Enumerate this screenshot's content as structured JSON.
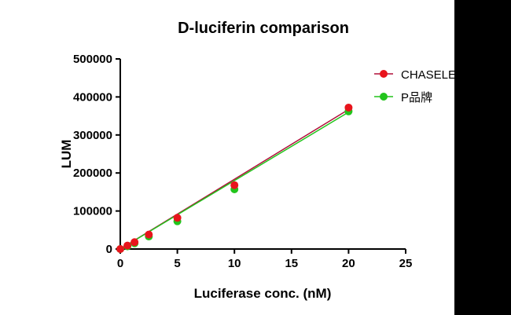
{
  "chart_data": {
    "type": "scatter",
    "title": "D-luciferin comparison",
    "xlabel": "Luciferase conc. (nM)",
    "ylabel": "LUM",
    "xlim": [
      0,
      25
    ],
    "ylim": [
      0,
      500000
    ],
    "x_ticks": [
      "0",
      "5",
      "10",
      "15",
      "20",
      "25"
    ],
    "y_ticks": [
      "0",
      "100000",
      "200000",
      "300000",
      "400000",
      "500000"
    ],
    "grid": false,
    "legend_position": "right",
    "series": [
      {
        "name": "CHASELEI",
        "color": "#e8141c",
        "line_color": "#b0103a",
        "points": [
          {
            "x": 0,
            "y": 0
          },
          {
            "x": 0.625,
            "y": 9000
          },
          {
            "x": 1.25,
            "y": 18000
          },
          {
            "x": 2.5,
            "y": 38000
          },
          {
            "x": 5,
            "y": 82000
          },
          {
            "x": 10,
            "y": 168000
          },
          {
            "x": 20,
            "y": 372000
          }
        ],
        "fit": {
          "x": [
            0,
            20
          ],
          "y": [
            0,
            367000
          ]
        }
      },
      {
        "name": "P品牌",
        "color": "#22c41c",
        "line_color": "#22c41c",
        "points": [
          {
            "x": 0,
            "y": 0
          },
          {
            "x": 0.625,
            "y": 7000
          },
          {
            "x": 1.25,
            "y": 15000
          },
          {
            "x": 2.5,
            "y": 33000
          },
          {
            "x": 5,
            "y": 73000
          },
          {
            "x": 10,
            "y": 157000
          },
          {
            "x": 20,
            "y": 362000
          }
        ],
        "fit": {
          "x": [
            0,
            20
          ],
          "y": [
            0,
            360000
          ]
        }
      }
    ]
  }
}
